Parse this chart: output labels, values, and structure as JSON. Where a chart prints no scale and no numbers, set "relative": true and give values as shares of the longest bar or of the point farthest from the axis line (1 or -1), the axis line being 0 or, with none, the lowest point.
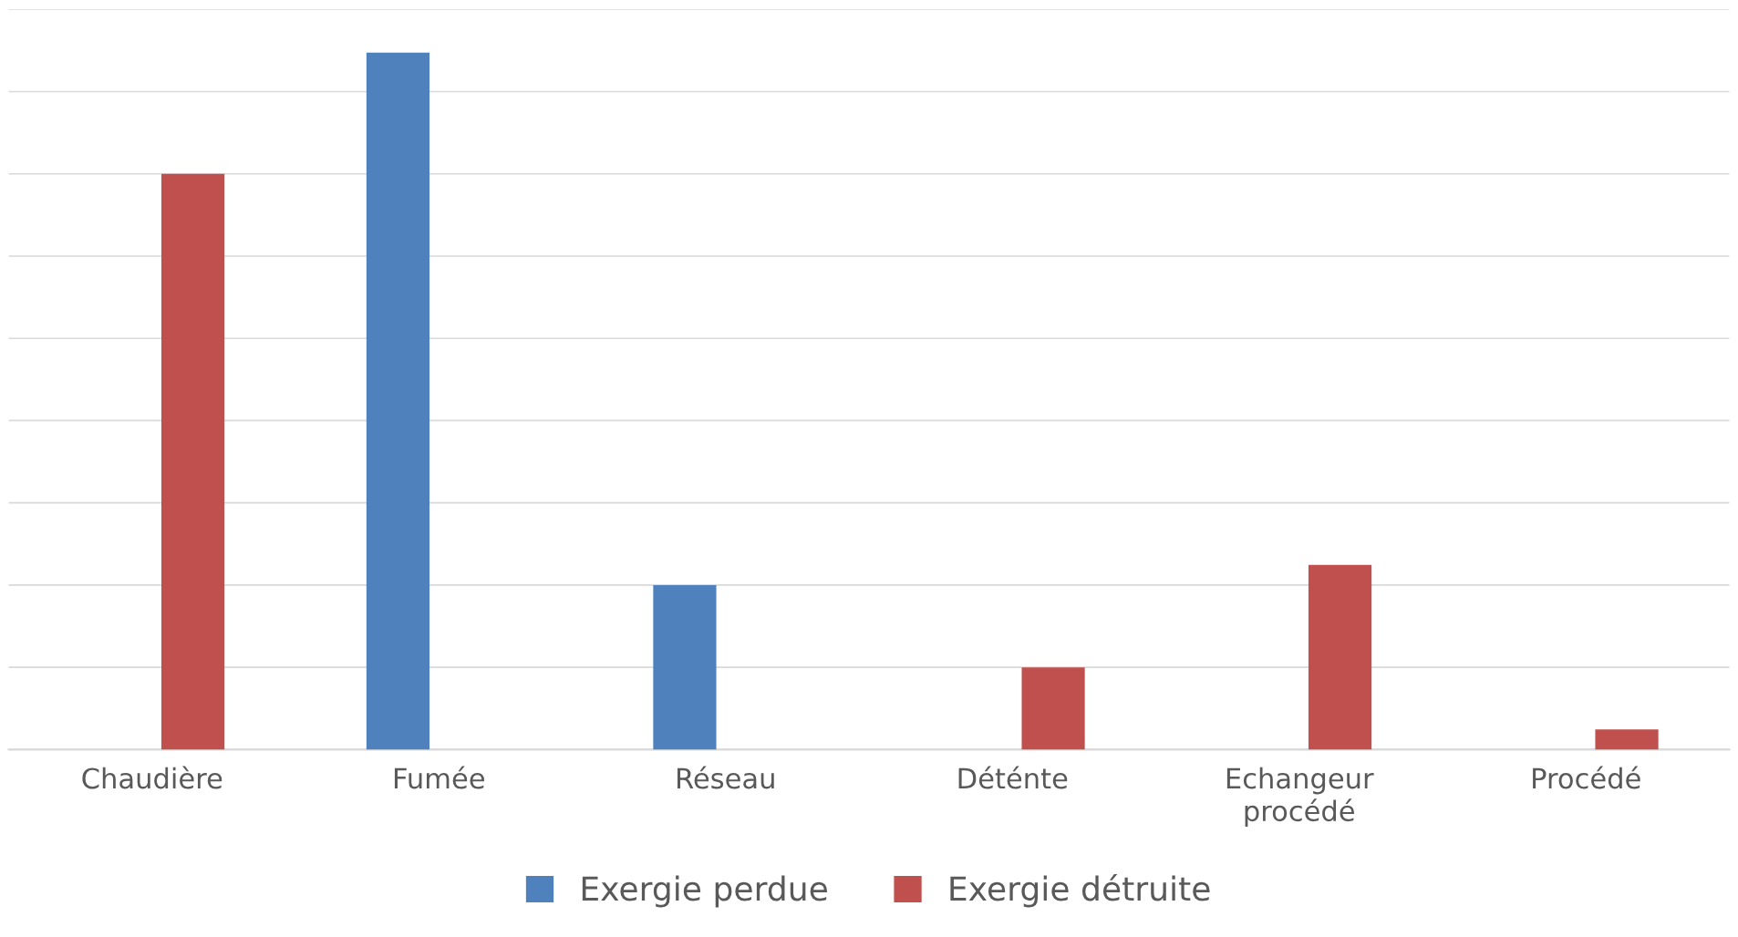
{
  "chart_data": {
    "type": "bar",
    "relative": true,
    "categories": [
      "Chaudière",
      "Fumée",
      "Réseau",
      "Déténte",
      "Echangeur\nprocédé",
      "Procédé"
    ],
    "series": [
      {
        "name": "Exergie perdue",
        "color": "#4f81bd",
        "values": [
          null,
          1,
          0.236,
          null,
          null,
          null
        ]
      },
      {
        "name": "Exergie détruite",
        "color": "#c0504d",
        "values": [
          0.826,
          null,
          null,
          0.118,
          0.265,
          0.029
        ]
      }
    ],
    "grid": "y",
    "legend": "bottom"
  }
}
